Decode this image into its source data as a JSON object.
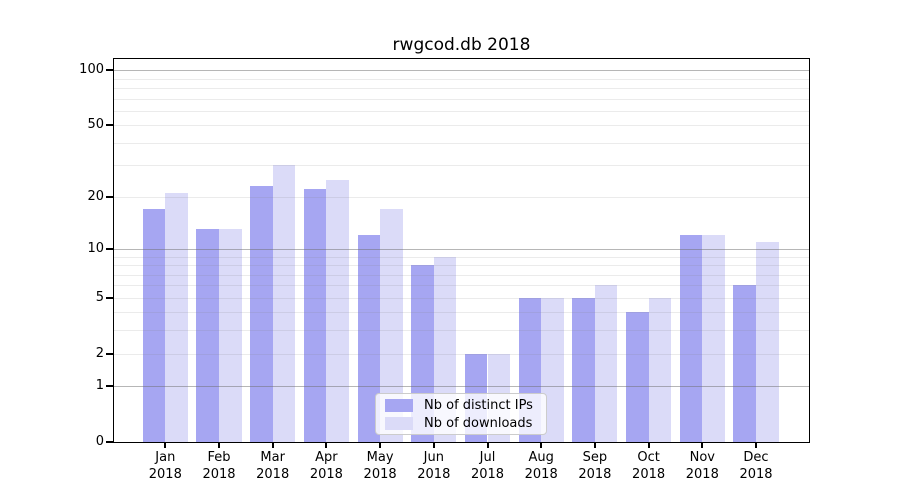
{
  "chart_data": {
    "type": "bar",
    "title": "rwgcod.db 2018",
    "categories": [
      "Jan 2018",
      "Feb 2018",
      "Mar 2018",
      "Apr 2018",
      "May 2018",
      "Jun 2018",
      "Jul 2018",
      "Aug 2018",
      "Sep 2018",
      "Oct 2018",
      "Nov 2018",
      "Dec 2018"
    ],
    "series": [
      {
        "name": "Nb of distinct IPs",
        "color": "#a6a6f2",
        "values": [
          17,
          13,
          23,
          22,
          12,
          8,
          2,
          5,
          5,
          4,
          12,
          6
        ]
      },
      {
        "name": "Nb of downloads",
        "color": "#dbdbf8",
        "values": [
          21,
          13,
          30,
          25,
          17,
          9,
          2,
          5,
          6,
          5,
          12,
          11
        ]
      }
    ],
    "xlabel": "",
    "ylabel": "",
    "y_axis": {
      "scale": "log10(value+1)",
      "tick_values": [
        0,
        1,
        2,
        5,
        10,
        20,
        50,
        100
      ],
      "tick_labels": [
        "0",
        "1",
        "2",
        "5",
        "10",
        "20",
        "50",
        "100"
      ],
      "major_gridlines": [
        1,
        10,
        100
      ],
      "minor_gridlines": [
        2,
        3,
        4,
        5,
        6,
        7,
        8,
        9,
        20,
        30,
        40,
        50,
        60,
        70,
        80,
        90
      ],
      "range": [
        0,
        117
      ]
    },
    "grid": true,
    "legend_position": "lower center"
  }
}
